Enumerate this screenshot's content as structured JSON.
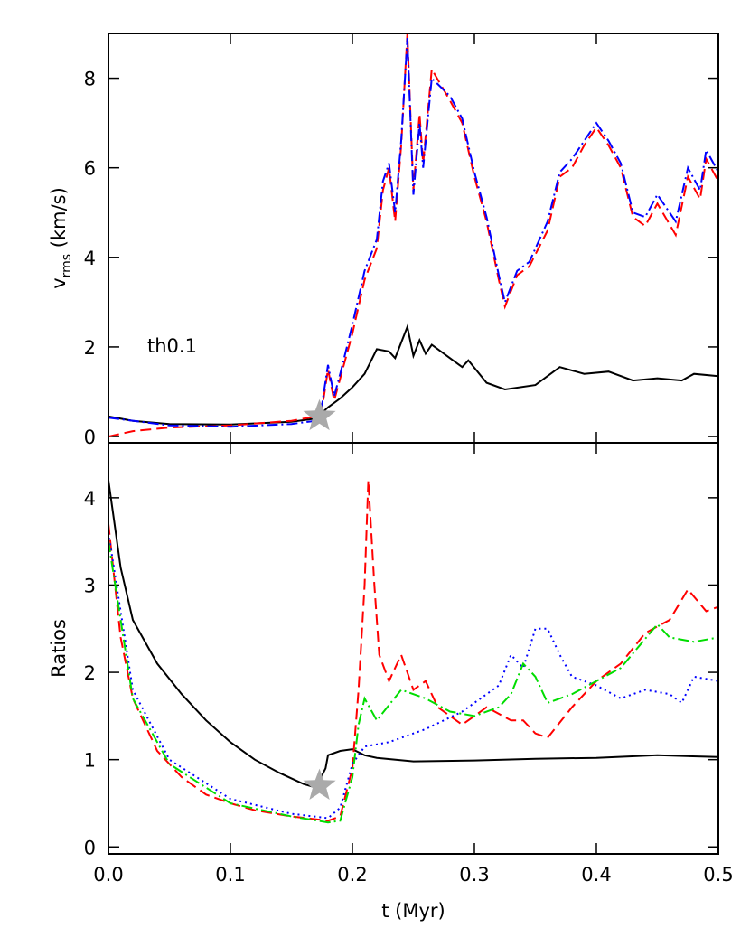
{
  "chart_data": [
    {
      "type": "line",
      "ylabel": "v",
      "ylabel_subscript": "rms",
      "ylabel_unit": "(km/s)",
      "annotation": "th0.1",
      "xlim": [
        0,
        0.5
      ],
      "ylim": [
        -0.14,
        9.0
      ],
      "xticks": [
        {
          "value": 0,
          "label": "0.0"
        },
        0.1,
        0.2,
        0.3,
        0.4,
        0.5
      ],
      "yticks": [
        0,
        2,
        4,
        6,
        8
      ],
      "star": {
        "x": 0.173,
        "y": 0.45,
        "color": "#aaaaaa"
      },
      "series": [
        {
          "color": "#000000",
          "dash": "solid",
          "x": [
            0,
            0.02,
            0.05,
            0.1,
            0.15,
            0.17,
            0.18,
            0.19,
            0.2,
            0.21,
            0.22,
            0.23,
            0.235,
            0.245,
            0.25,
            0.255,
            0.26,
            0.265,
            0.28,
            0.29,
            0.295,
            0.31,
            0.325,
            0.35,
            0.37,
            0.39,
            0.41,
            0.43,
            0.45,
            0.47,
            0.48,
            0.5
          ],
          "values": [
            0.45,
            0.35,
            0.28,
            0.27,
            0.33,
            0.4,
            0.65,
            0.85,
            1.1,
            1.4,
            1.95,
            1.9,
            1.75,
            2.45,
            1.8,
            2.15,
            1.85,
            2.05,
            1.75,
            1.55,
            1.7,
            1.2,
            1.05,
            1.15,
            1.55,
            1.4,
            1.45,
            1.25,
            1.3,
            1.25,
            1.4,
            1.35
          ]
        },
        {
          "color": "#ff0000",
          "dash": "dashed",
          "x": [
            0,
            0.02,
            0.05,
            0.1,
            0.15,
            0.17,
            0.175,
            0.18,
            0.185,
            0.19,
            0.2,
            0.21,
            0.22,
            0.225,
            0.23,
            0.235,
            0.24,
            0.245,
            0.25,
            0.255,
            0.258,
            0.265,
            0.28,
            0.29,
            0.3,
            0.31,
            0.32,
            0.325,
            0.335,
            0.345,
            0.36,
            0.37,
            0.38,
            0.39,
            0.4,
            0.41,
            0.42,
            0.43,
            0.44,
            0.45,
            0.465,
            0.475,
            0.485,
            0.49,
            0.5
          ],
          "values": [
            0.0,
            0.12,
            0.2,
            0.25,
            0.35,
            0.45,
            0.6,
            1.5,
            0.8,
            1.3,
            2.3,
            3.5,
            4.2,
            5.5,
            6.0,
            4.8,
            6.5,
            9.0,
            5.5,
            7.2,
            6.1,
            8.2,
            7.5,
            7.0,
            5.8,
            4.8,
            3.5,
            2.9,
            3.6,
            3.8,
            4.6,
            5.8,
            6.0,
            6.5,
            6.9,
            6.5,
            6.0,
            4.9,
            4.7,
            5.2,
            4.5,
            5.8,
            5.3,
            6.2,
            5.7
          ]
        },
        {
          "color": "#0000ff",
          "dash": "dashdot",
          "x": [
            0,
            0.05,
            0.1,
            0.15,
            0.17,
            0.175,
            0.18,
            0.185,
            0.19,
            0.2,
            0.21,
            0.22,
            0.225,
            0.23,
            0.235,
            0.24,
            0.245,
            0.25,
            0.255,
            0.258,
            0.265,
            0.28,
            0.29,
            0.3,
            0.31,
            0.32,
            0.325,
            0.335,
            0.345,
            0.36,
            0.37,
            0.38,
            0.39,
            0.4,
            0.41,
            0.42,
            0.43,
            0.44,
            0.45,
            0.465,
            0.475,
            0.485,
            0.49,
            0.5
          ],
          "values": [
            0.42,
            0.25,
            0.22,
            0.28,
            0.35,
            0.7,
            1.6,
            0.9,
            1.4,
            2.5,
            3.7,
            4.4,
            5.7,
            6.1,
            5.0,
            6.6,
            8.9,
            5.4,
            7.0,
            6.0,
            8.0,
            7.6,
            7.1,
            5.9,
            4.9,
            3.6,
            3.0,
            3.7,
            3.9,
            4.8,
            5.9,
            6.2,
            6.6,
            7.0,
            6.6,
            6.1,
            5.0,
            4.9,
            5.4,
            4.8,
            6.0,
            5.5,
            6.4,
            5.9
          ]
        }
      ]
    },
    {
      "type": "line",
      "ylabel": "Ratios",
      "xlabel": "t (Myr)",
      "xlim": [
        0,
        0.5
      ],
      "ylim": [
        -0.08,
        4.63
      ],
      "xticks": [
        {
          "value": 0,
          "label": "0.0"
        },
        0.1,
        0.2,
        0.3,
        0.4,
        0.5
      ],
      "yticks": [
        0,
        1,
        2,
        3,
        4
      ],
      "star": {
        "x": 0.173,
        "y": 0.7,
        "color": "#aaaaaa"
      },
      "series": [
        {
          "color": "#000000",
          "dash": "solid",
          "x": [
            0,
            0.01,
            0.02,
            0.04,
            0.06,
            0.08,
            0.1,
            0.12,
            0.14,
            0.16,
            0.17,
            0.178,
            0.18,
            0.19,
            0.2,
            0.21,
            0.22,
            0.25,
            0.3,
            0.35,
            0.4,
            0.45,
            0.5
          ],
          "values": [
            4.2,
            3.2,
            2.6,
            2.1,
            1.75,
            1.45,
            1.2,
            1.0,
            0.85,
            0.72,
            0.68,
            0.9,
            1.05,
            1.1,
            1.12,
            1.05,
            1.02,
            0.98,
            0.99,
            1.01,
            1.02,
            1.05,
            1.03
          ]
        },
        {
          "color": "#ff0000",
          "dash": "dashed",
          "x": [
            0,
            0.01,
            0.02,
            0.04,
            0.06,
            0.08,
            0.1,
            0.12,
            0.15,
            0.18,
            0.19,
            0.2,
            0.205,
            0.21,
            0.213,
            0.218,
            0.222,
            0.23,
            0.24,
            0.25,
            0.26,
            0.27,
            0.29,
            0.3,
            0.31,
            0.33,
            0.34,
            0.35,
            0.36,
            0.38,
            0.4,
            0.42,
            0.44,
            0.46,
            0.475,
            0.49,
            0.5
          ],
          "values": [
            3.7,
            2.4,
            1.7,
            1.1,
            0.8,
            0.6,
            0.5,
            0.42,
            0.35,
            0.3,
            0.35,
            0.9,
            1.8,
            3.0,
            4.2,
            3.0,
            2.2,
            1.9,
            2.2,
            1.8,
            1.9,
            1.6,
            1.4,
            1.5,
            1.6,
            1.45,
            1.45,
            1.3,
            1.25,
            1.6,
            1.9,
            2.1,
            2.45,
            2.6,
            2.95,
            2.7,
            2.75
          ]
        },
        {
          "color": "#0000ff",
          "dash": "dotted",
          "x": [
            0,
            0.02,
            0.05,
            0.1,
            0.15,
            0.18,
            0.19,
            0.2,
            0.21,
            0.23,
            0.26,
            0.29,
            0.32,
            0.33,
            0.34,
            0.35,
            0.36,
            0.37,
            0.38,
            0.4,
            0.42,
            0.44,
            0.46,
            0.47,
            0.48,
            0.5
          ],
          "values": [
            3.6,
            1.8,
            1.0,
            0.55,
            0.38,
            0.33,
            0.45,
            0.95,
            1.15,
            1.2,
            1.35,
            1.55,
            1.85,
            2.2,
            2.05,
            2.5,
            2.5,
            2.2,
            1.95,
            1.85,
            1.7,
            1.8,
            1.75,
            1.65,
            1.95,
            1.9
          ]
        },
        {
          "color": "#00dd00",
          "dash": "dashdot",
          "x": [
            0,
            0.02,
            0.05,
            0.1,
            0.15,
            0.18,
            0.19,
            0.2,
            0.205,
            0.21,
            0.22,
            0.24,
            0.26,
            0.28,
            0.3,
            0.32,
            0.33,
            0.34,
            0.35,
            0.36,
            0.38,
            0.4,
            0.42,
            0.45,
            0.46,
            0.48,
            0.5
          ],
          "values": [
            3.5,
            1.7,
            0.95,
            0.5,
            0.35,
            0.28,
            0.3,
            0.8,
            1.4,
            1.7,
            1.45,
            1.8,
            1.7,
            1.55,
            1.5,
            1.6,
            1.75,
            2.1,
            1.95,
            1.65,
            1.75,
            1.9,
            2.05,
            2.55,
            2.4,
            2.35,
            2.4
          ]
        }
      ]
    }
  ]
}
